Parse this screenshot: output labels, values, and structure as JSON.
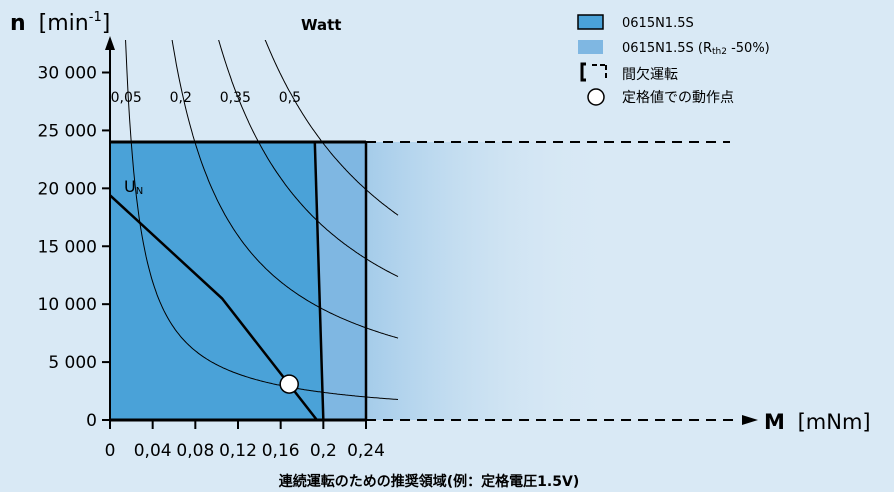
{
  "colors": {
    "background": "#d9e9f5",
    "region_continuous": "#4aa2d8",
    "region_extended": "#7fb7e2",
    "line": "#000000"
  },
  "chart_data": {
    "type": "line",
    "title": "",
    "xlabel": {
      "symbol": "M",
      "unit": "[mNm]"
    },
    "ylabel": {
      "symbol": "n",
      "unit_prefix": "[min",
      "unit_exp": "-1",
      "unit_suffix": "]"
    },
    "xlim": [
      0,
      0.28
    ],
    "ylim": [
      0,
      32000
    ],
    "x_ticks": [
      {
        "value": 0,
        "label": "0"
      },
      {
        "value": 0.04,
        "label": "0,04"
      },
      {
        "value": 0.08,
        "label": "0,08"
      },
      {
        "value": 0.12,
        "label": "0,12"
      },
      {
        "value": 0.16,
        "label": "0,16"
      },
      {
        "value": 0.2,
        "label": "0,2"
      },
      {
        "value": 0.24,
        "label": "0,24"
      }
    ],
    "y_ticks": [
      {
        "value": 0,
        "label": "0"
      },
      {
        "value": 5000,
        "label": "5 000"
      },
      {
        "value": 10000,
        "label": "10 000"
      },
      {
        "value": 15000,
        "label": "15 000"
      },
      {
        "value": 20000,
        "label": "20 000"
      },
      {
        "value": 25000,
        "label": "25 000"
      },
      {
        "value": 30000,
        "label": "30 000"
      }
    ],
    "power_title": "Watt",
    "power_curves": [
      {
        "label": "0,05",
        "watts": 0.05
      },
      {
        "label": "0,2",
        "watts": 0.2
      },
      {
        "label": "0,35",
        "watts": 0.35
      },
      {
        "label": "0,5",
        "watts": 0.5
      }
    ],
    "speed_limit": 24000,
    "region_continuous": {
      "torque_at_top": 0.192,
      "torque_at_bottom": 0.2
    },
    "region_extended": {
      "torque": 0.24
    },
    "un_line": {
      "label": "U",
      "label_sub": "N",
      "points": [
        [
          0,
          19400
        ],
        [
          0.105,
          10500
        ],
        [
          0.194,
          0
        ]
      ]
    },
    "rated_point": {
      "x": 0.168,
      "y": 3100
    },
    "legend": [
      {
        "label": "0615N1.5S",
        "sub": "",
        "suffix": "",
        "kind": "box-continuous"
      },
      {
        "label": "0615N1.5S (R",
        "sub": "th2",
        "suffix": " -50%)",
        "kind": "box-extended"
      },
      {
        "label": "間欠運転",
        "sub": "",
        "suffix": "",
        "kind": "bracket"
      },
      {
        "label": "定格値での動作点",
        "sub": "",
        "suffix": "",
        "kind": "circle"
      }
    ],
    "legend_position": "top-right",
    "caption": "連続運転のための推奨領域(例：定格電圧1.5V)"
  }
}
